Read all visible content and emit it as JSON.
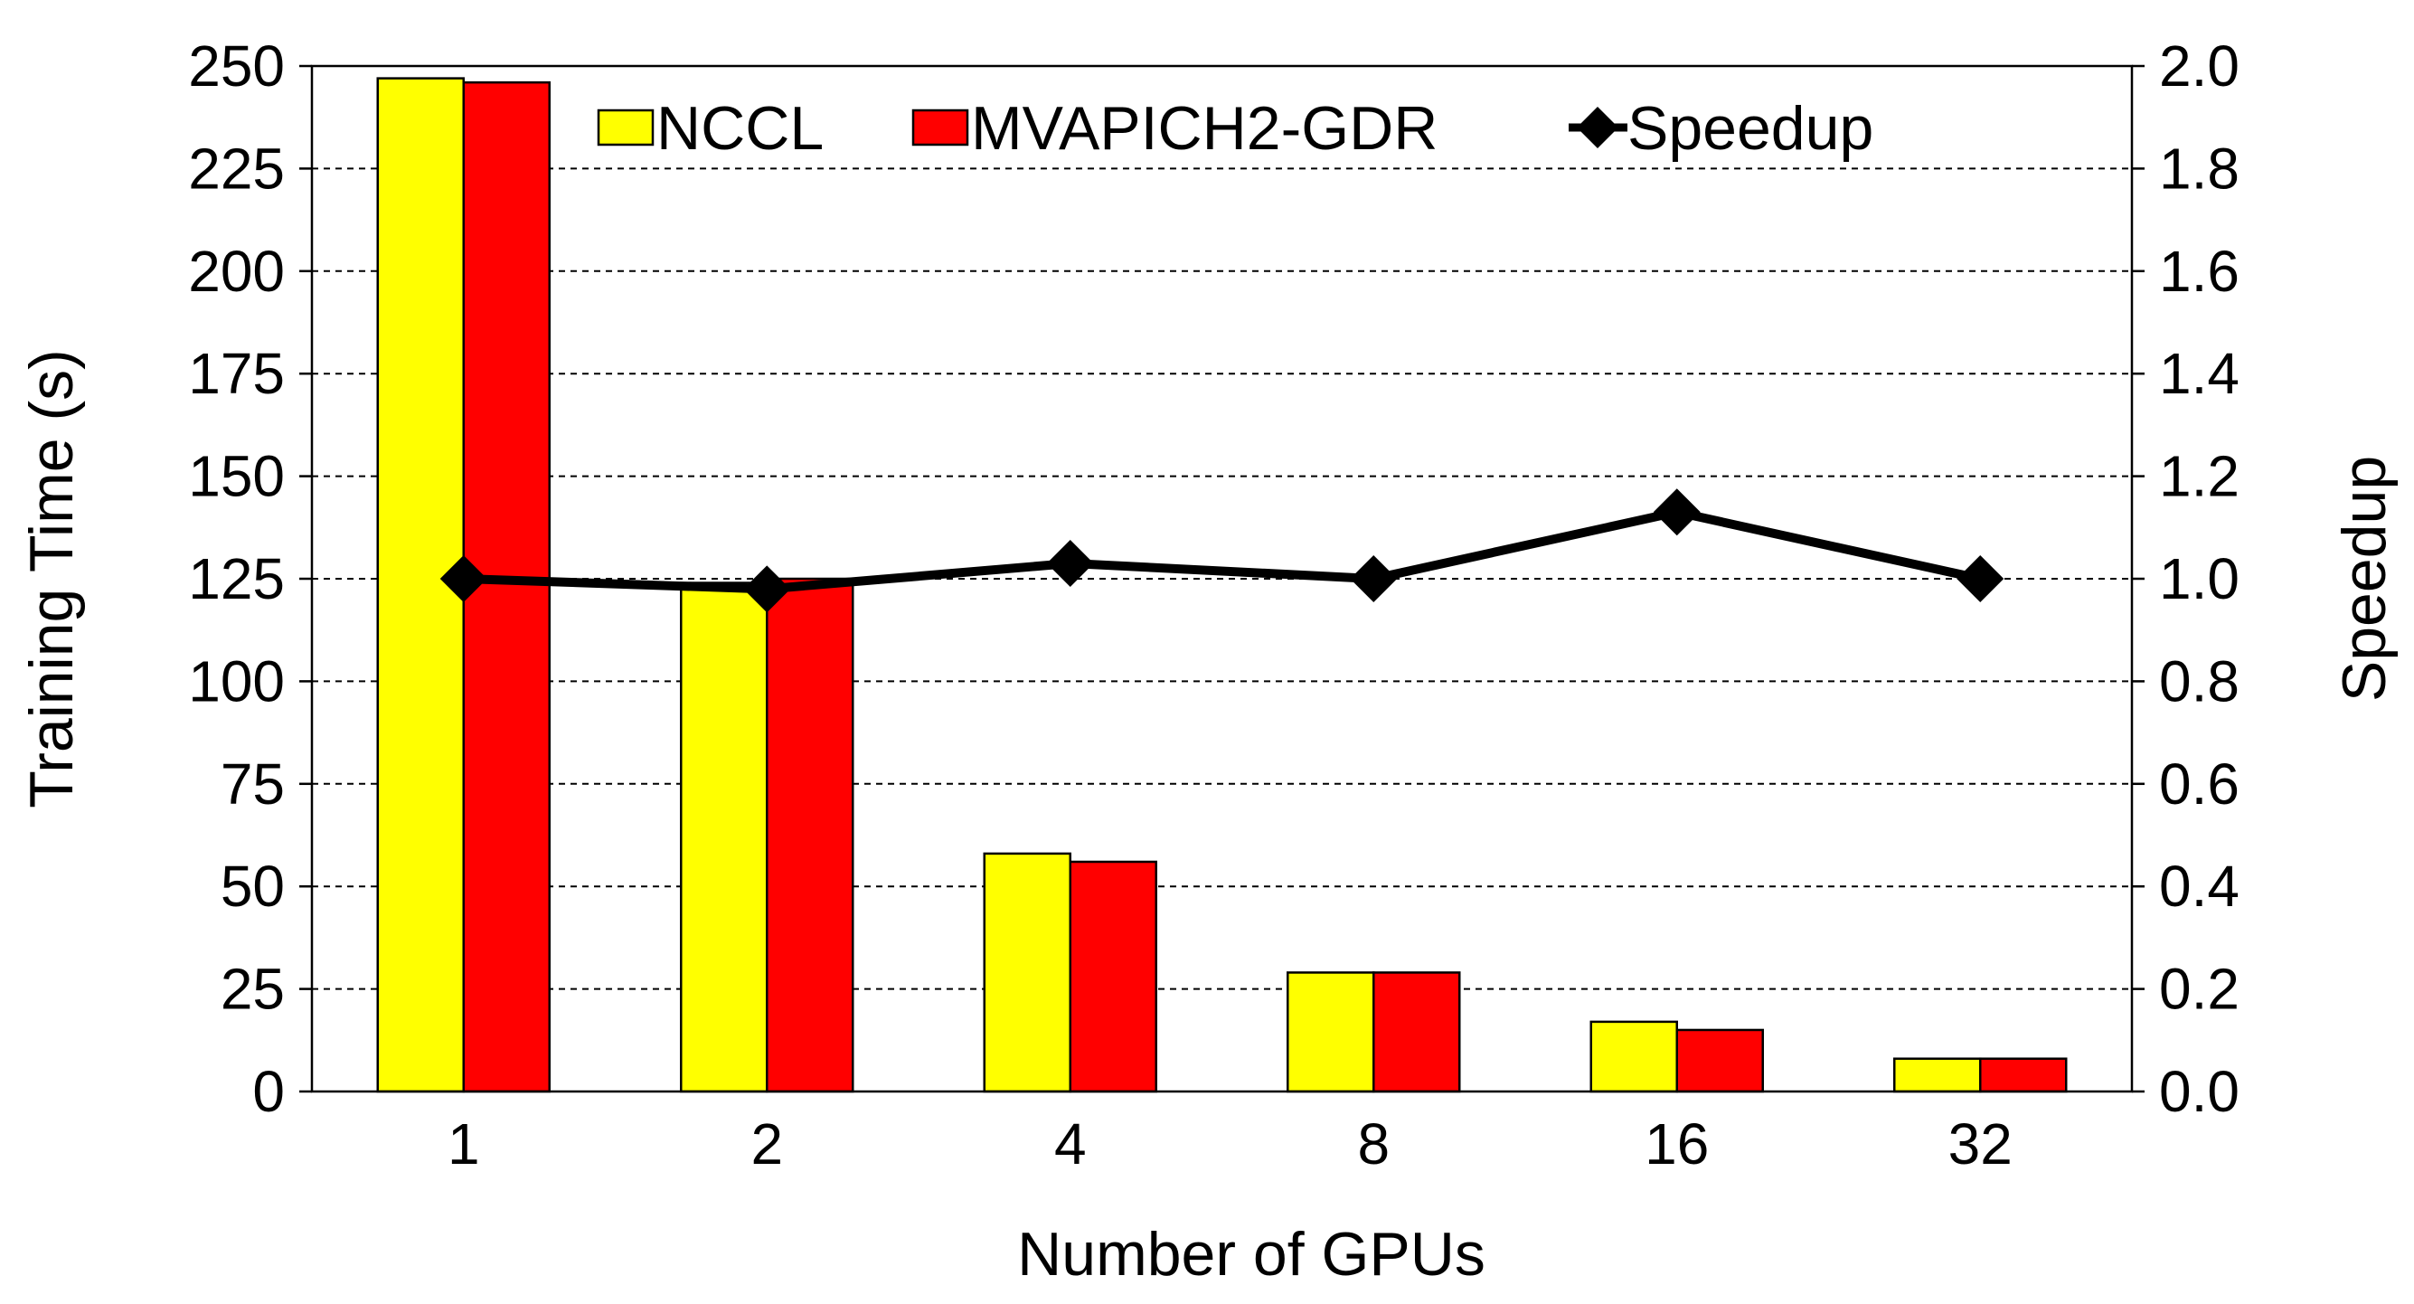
{
  "chart_data": {
    "type": "bar",
    "title": "",
    "xlabel": "Number of GPUs",
    "ylabel": "Training Time (s)",
    "y2label": "Speedup",
    "categories": [
      "1",
      "2",
      "4",
      "8",
      "16",
      "32"
    ],
    "ylim": [
      0,
      250
    ],
    "yticks": [
      0,
      25,
      50,
      75,
      100,
      125,
      150,
      175,
      200,
      225,
      250
    ],
    "ytick_labels": [
      "0",
      "25",
      "50",
      "75",
      "100",
      "125",
      "150",
      "175",
      "200",
      "225",
      "250"
    ],
    "y2lim": [
      0,
      2
    ],
    "y2ticks": [
      0,
      0.2,
      0.4,
      0.6,
      0.8,
      1.0,
      1.2,
      1.4,
      1.6,
      1.8,
      2.0
    ],
    "y2tick_labels": [
      "0.0",
      "0.2",
      "0.4",
      "0.6",
      "0.8",
      "1.0",
      "1.2",
      "1.4",
      "1.6",
      "1.8",
      "2.0"
    ],
    "grid": true,
    "legend_position": "top",
    "series": [
      {
        "name": "NCCL",
        "type": "bar",
        "axis": "left",
        "color": "#FFFF00",
        "values": [
          247,
          124,
          58,
          29,
          17,
          8
        ]
      },
      {
        "name": "MVAPICH2-GDR",
        "type": "bar",
        "axis": "left",
        "color": "#FF0000",
        "values": [
          246,
          125,
          56,
          29,
          15,
          8
        ]
      },
      {
        "name": "Speedup",
        "type": "line",
        "axis": "right",
        "color": "#000000",
        "marker": "diamond",
        "values": [
          1.0,
          0.98,
          1.03,
          1.0,
          1.13,
          1.0
        ]
      }
    ]
  }
}
